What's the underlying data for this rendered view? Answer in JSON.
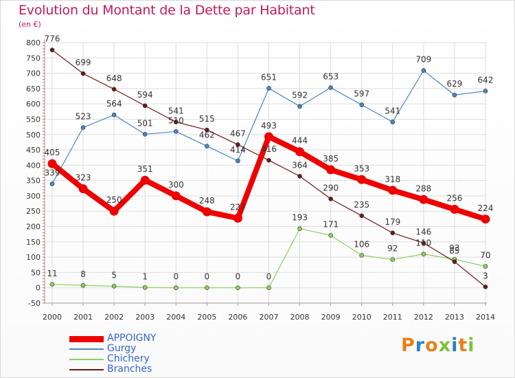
{
  "chart_data": {
    "type": "line",
    "title": "Evolution du Montant de la Dette par Habitant",
    "unit_label": "(en €)",
    "x": [
      "2000",
      "2001",
      "2002",
      "2003",
      "2004",
      "2005",
      "2006",
      "2007",
      "2008",
      "2009",
      "2010",
      "2011",
      "2012",
      "2013",
      "2014"
    ],
    "ylim": [
      -50,
      800
    ],
    "yticks": [
      -50,
      0,
      50,
      100,
      150,
      200,
      250,
      300,
      350,
      400,
      450,
      500,
      550,
      600,
      650,
      700,
      750,
      800
    ],
    "grid": true,
    "legend_position": "bottom-left",
    "series": [
      {
        "name": "APPOIGNY",
        "color": "#ee0000",
        "values": [
          405,
          323,
          250,
          351,
          300,
          248,
          227,
          493,
          444,
          385,
          353,
          318,
          288,
          256,
          224
        ]
      },
      {
        "name": "Gurgy",
        "color": "#4a86c0",
        "values": [
          339,
          523,
          564,
          501,
          510,
          462,
          414,
          651,
          592,
          653,
          597,
          541,
          709,
          629,
          642
        ]
      },
      {
        "name": "Chichery",
        "color": "#8cd05c",
        "values": [
          11,
          8,
          5,
          1,
          0,
          0,
          0,
          0,
          193,
          171,
          106,
          92,
          110,
          93,
          70
        ]
      },
      {
        "name": "Branches",
        "color": "#6b1a1a",
        "values": [
          776,
          699,
          648,
          594,
          541,
          515,
          467,
          416,
          364,
          290,
          235,
          179,
          146,
          85,
          3
        ]
      }
    ]
  },
  "logo": {
    "text": "Proxiti",
    "colors": [
      "#e8801a",
      "#2a80c8",
      "#e8801a",
      "#7cc23a",
      "#2a80c8",
      "#e8801a",
      "#7cc23a"
    ]
  }
}
